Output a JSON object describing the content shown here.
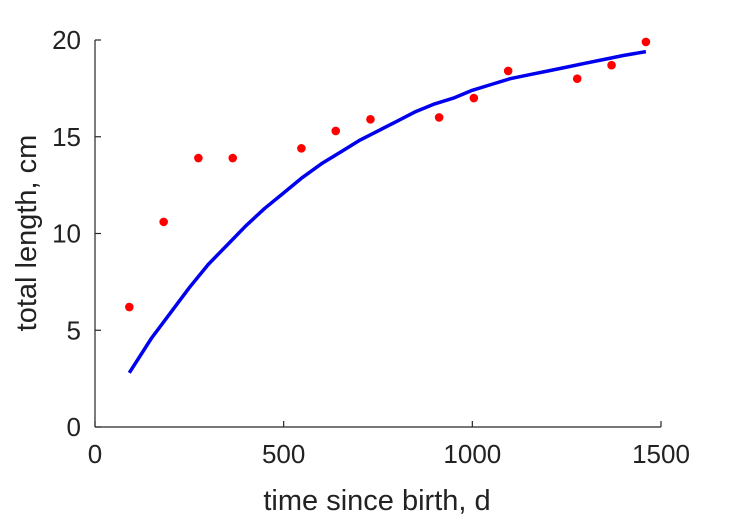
{
  "chart_data": {
    "type": "scatter",
    "title": "",
    "xlabel": "time since birth, d",
    "ylabel": "total length, cm",
    "xlim": [
      0,
      1500
    ],
    "ylim": [
      0,
      20
    ],
    "xticks": [
      0,
      500,
      1000,
      1500
    ],
    "yticks": [
      0,
      5,
      10,
      15,
      20
    ],
    "xtick_labels": [
      "0",
      "500",
      "1000",
      "1500"
    ],
    "ytick_labels": [
      "0",
      "5",
      "10",
      "15",
      "20"
    ],
    "grid": false,
    "series": [
      {
        "kind": "points",
        "color": "#ff0000",
        "x": [
          91,
          182,
          274,
          365,
          547,
          638,
          730,
          912,
          1004,
          1095,
          1278,
          1369,
          1460
        ],
        "y": [
          6.2,
          10.6,
          13.9,
          13.9,
          14.4,
          15.3,
          15.9,
          16.0,
          17.0,
          18.4,
          18.0,
          18.7,
          19.9
        ]
      },
      {
        "kind": "line",
        "color": "#0000ee",
        "x": [
          91,
          150,
          200,
          250,
          300,
          350,
          400,
          450,
          500,
          550,
          600,
          650,
          700,
          750,
          800,
          850,
          900,
          950,
          1000,
          1050,
          1100,
          1150,
          1200,
          1250,
          1300,
          1350,
          1400,
          1460
        ],
        "y": [
          2.8,
          4.6,
          5.9,
          7.2,
          8.4,
          9.4,
          10.4,
          11.3,
          12.1,
          12.9,
          13.6,
          14.2,
          14.8,
          15.3,
          15.8,
          16.3,
          16.7,
          17.0,
          17.4,
          17.7,
          18.0,
          18.2,
          18.4,
          18.6,
          18.8,
          19.0,
          19.2,
          19.4
        ]
      }
    ]
  }
}
